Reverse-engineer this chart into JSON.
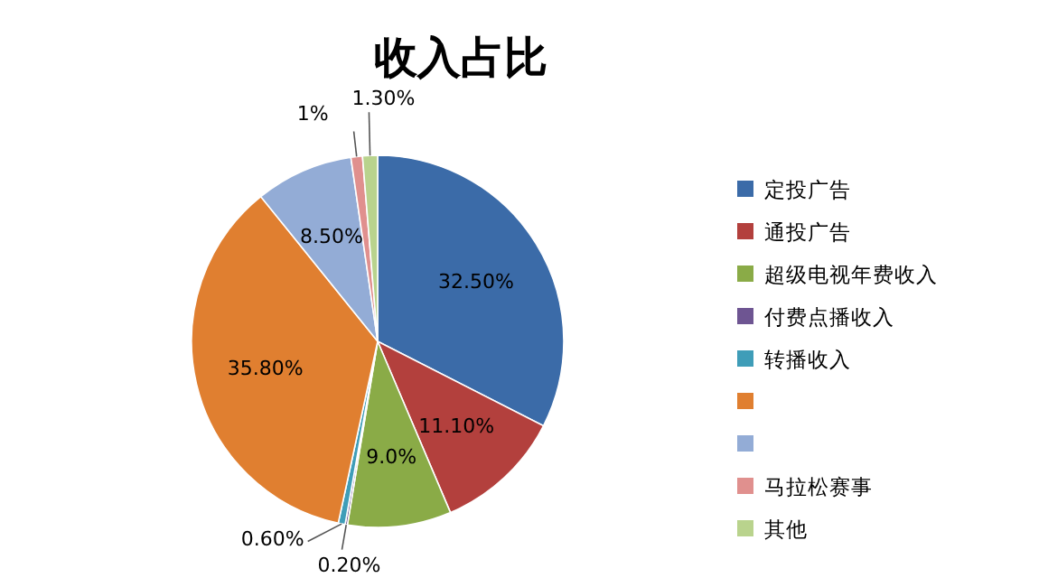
{
  "chart_data": {
    "type": "pie",
    "title": "收入占比",
    "categories": [
      "定投广告",
      "通投广告",
      "超级电视年费收入",
      "付费点播收入",
      "转播收入",
      null,
      null,
      "马拉松赛事",
      "其他"
    ],
    "values": [
      32.5,
      11.1,
      9.0,
      0.2,
      0.6,
      35.8,
      8.5,
      1,
      1.3
    ],
    "value_labels": [
      "32.50%",
      "11.10%",
      "9.0%",
      "0.20%",
      "0.60%",
      "35.80%",
      "8.50%",
      "1%",
      "1.30%"
    ],
    "colors": [
      "#3b6ba8",
      "#b3403d",
      "#8aab47",
      "#6e5592",
      "#3f9db8",
      "#e07f30",
      "#93acd6",
      "#e0908e",
      "#b9d38d"
    ],
    "legend": "right"
  }
}
